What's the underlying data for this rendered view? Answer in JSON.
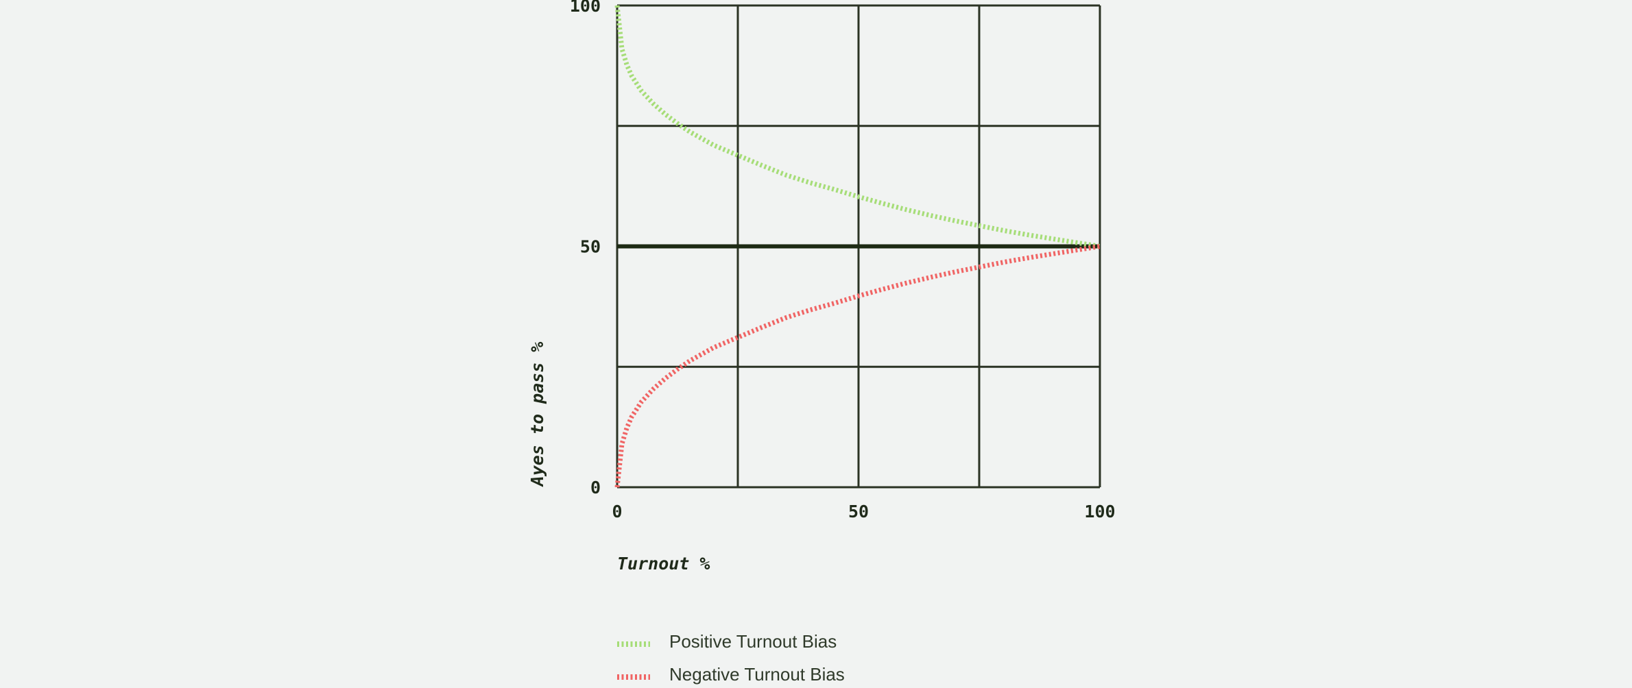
{
  "chart_data": {
    "type": "line",
    "xlabel": "Turnout %",
    "ylabel": "Ayes to pass %",
    "xlim": [
      0,
      100
    ],
    "ylim": [
      0,
      100
    ],
    "x_ticks": [
      "0",
      "50",
      "100"
    ],
    "y_ticks": [
      "0",
      "50",
      "100"
    ],
    "grid": true,
    "grid_step": 25,
    "reference_line_y": 50,
    "legend_position": "bottom-left",
    "colors": {
      "background": "#f1f3f2",
      "grid": "#2b3324",
      "text": "#1f2a1a",
      "positive": "#a6dd78",
      "negative": "#f06464"
    },
    "series": [
      {
        "name": "Positive Turnout Bias",
        "color": "#a6dd78",
        "x": [
          0,
          1,
          2,
          3,
          5,
          7.5,
          10,
          12.5,
          15,
          20,
          25,
          30,
          35,
          40,
          45,
          50,
          55,
          60,
          65,
          70,
          75,
          80,
          85,
          90,
          95,
          100
        ],
        "y": [
          100,
          91.0,
          87.7,
          85.4,
          82.3,
          79.6,
          77.4,
          75.5,
          73.8,
          71.0,
          68.9,
          66.8,
          64.8,
          63.2,
          61.8,
          60.3,
          58.9,
          57.6,
          56.4,
          55.3,
          54.3,
          53.3,
          52.4,
          51.6,
          50.8,
          50
        ]
      },
      {
        "name": "Negative Turnout Bias",
        "color": "#f06464",
        "x": [
          0,
          1,
          2,
          3,
          5,
          7.5,
          10,
          12.5,
          15,
          20,
          25,
          30,
          35,
          40,
          45,
          50,
          55,
          60,
          65,
          70,
          75,
          80,
          85,
          90,
          95,
          100
        ],
        "y": [
          0,
          9.0,
          12.3,
          14.6,
          17.7,
          20.4,
          22.6,
          24.5,
          26.2,
          29.0,
          31.1,
          33.2,
          35.2,
          36.8,
          38.2,
          39.7,
          41.1,
          42.4,
          43.6,
          44.7,
          45.7,
          46.7,
          47.6,
          48.4,
          49.2,
          50
        ]
      }
    ]
  }
}
